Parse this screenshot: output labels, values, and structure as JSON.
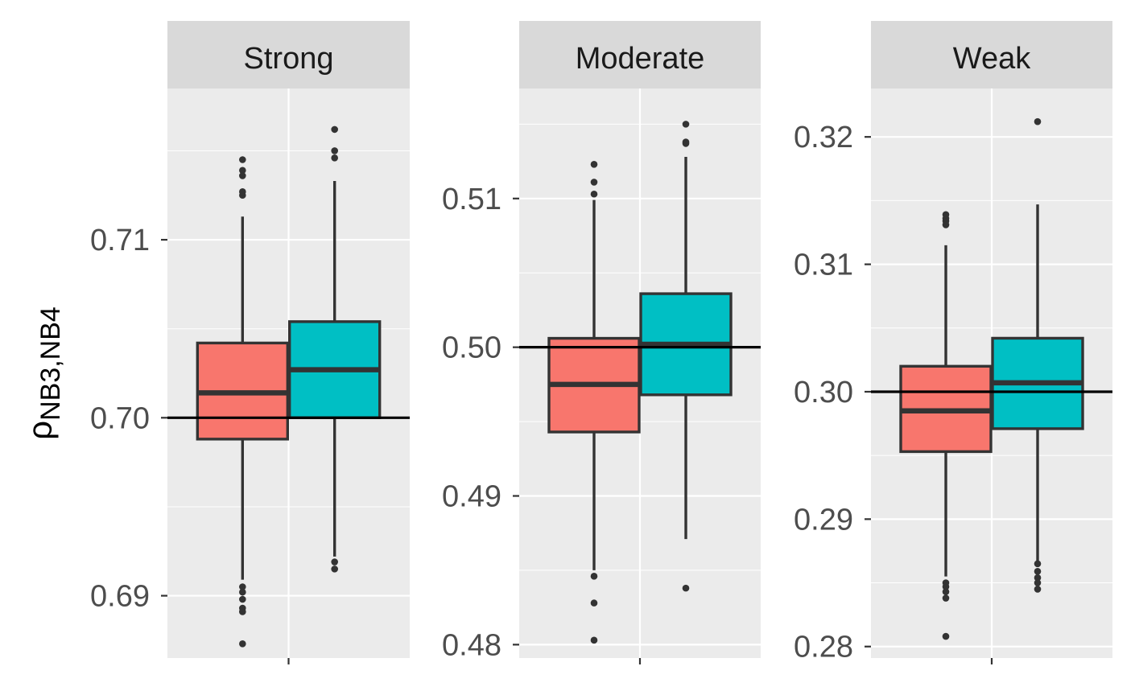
{
  "chart_data": [
    {
      "type": "box",
      "title": "Strong",
      "reference_line": 0.7,
      "ylim": [
        0.6865,
        0.7185
      ],
      "yticks": [
        0.69,
        0.7,
        0.71
      ],
      "ytick_labels": [
        "0.69",
        "0.70",
        "0.71"
      ],
      "series": [
        {
          "color": "#F8766D",
          "q1": 0.6988,
          "median": 0.7014,
          "q3": 0.7042,
          "whisker_low": 0.6909,
          "whisker_high": 0.7113,
          "outliers": [
            0.6873,
            0.6891,
            0.6893,
            0.6898,
            0.6902,
            0.6905,
            0.7125,
            0.7127,
            0.7136,
            0.7139,
            0.7145
          ]
        },
        {
          "color": "#00BFC4",
          "q1": 0.7,
          "median": 0.7027,
          "q3": 0.7054,
          "whisker_low": 0.6922,
          "whisker_high": 0.7133,
          "outliers": [
            0.6915,
            0.6919,
            0.7146,
            0.715,
            0.7162
          ]
        }
      ]
    },
    {
      "type": "box",
      "title": "Moderate",
      "reference_line": 0.5,
      "ylim": [
        0.4791,
        0.5174
      ],
      "yticks": [
        0.48,
        0.49,
        0.5,
        0.51
      ],
      "ytick_labels": [
        "0.48",
        "0.49",
        "0.50",
        "0.51"
      ],
      "series": [
        {
          "color": "#F8766D",
          "q1": 0.4943,
          "median": 0.4975,
          "q3": 0.5006,
          "whisker_low": 0.485,
          "whisker_high": 0.5099,
          "outliers": [
            0.4803,
            0.4828,
            0.4846,
            0.5103,
            0.5111,
            0.5123
          ]
        },
        {
          "color": "#00BFC4",
          "q1": 0.4968,
          "median": 0.5002,
          "q3": 0.5036,
          "whisker_low": 0.4871,
          "whisker_high": 0.5128,
          "outliers": [
            0.4838,
            0.5137,
            0.5138,
            0.515
          ]
        }
      ]
    },
    {
      "type": "box",
      "title": "Weak",
      "reference_line": 0.3,
      "ylim": [
        0.2791,
        0.3238
      ],
      "yticks": [
        0.28,
        0.29,
        0.3,
        0.31,
        0.32
      ],
      "ytick_labels": [
        "0.28",
        "0.29",
        "0.30",
        "0.31",
        "0.32"
      ],
      "series": [
        {
          "color": "#F8766D",
          "q1": 0.2953,
          "median": 0.2985,
          "q3": 0.302,
          "whisker_low": 0.2855,
          "whisker_high": 0.3115,
          "outliers": [
            0.2808,
            0.2838,
            0.2843,
            0.2847,
            0.285,
            0.3131,
            0.3134,
            0.3136,
            0.3139
          ]
        },
        {
          "color": "#00BFC4",
          "q1": 0.2971,
          "median": 0.3007,
          "q3": 0.3042,
          "whisker_low": 0.2866,
          "whisker_high": 0.3147,
          "outliers": [
            0.2845,
            0.285,
            0.2854,
            0.2859,
            0.2865,
            0.3212
          ]
        }
      ]
    }
  ],
  "ylabel": {
    "symbol": "ρ",
    "subscript": "NB3,NB4"
  },
  "style": {
    "panel_background": "#EBEBEB",
    "strip_background": "#D9D9D9",
    "grid_color": "#FFFFFF",
    "box_outline": "#333333",
    "reference_line_color": "#000000"
  }
}
